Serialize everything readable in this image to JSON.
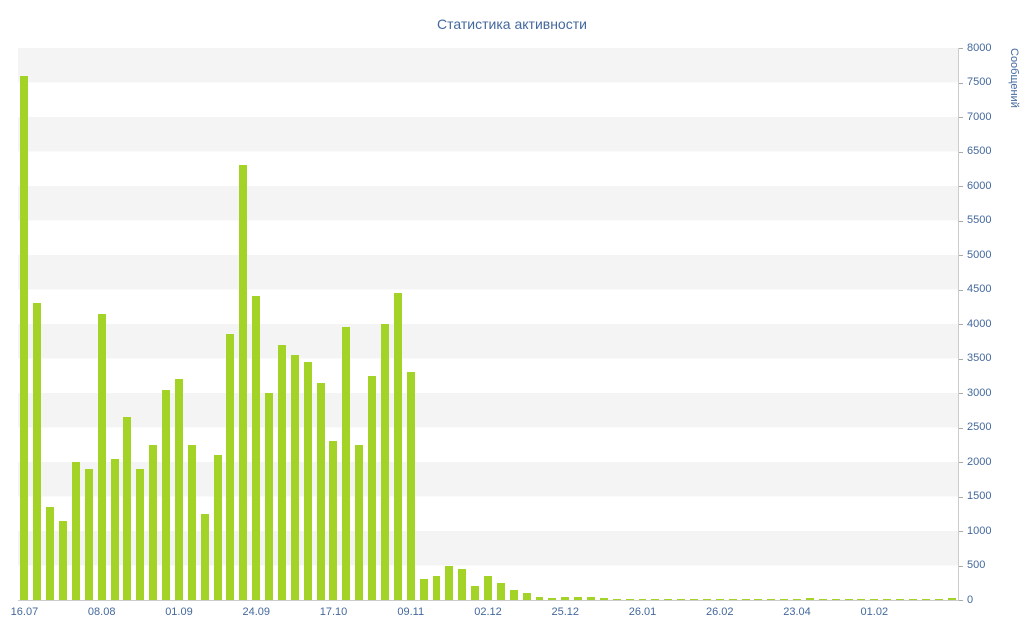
{
  "title": "Статистика активности",
  "colors": {
    "accent_text": "#44699d",
    "bar": "#a4d328",
    "stripe": "#f4f4f4",
    "axis": "#cccccc"
  },
  "chart_data": {
    "type": "bar",
    "title": "Статистика активности",
    "xlabel": "",
    "ylabel": "Сообщений",
    "ylim": [
      0,
      8000
    ],
    "ytick_step": 500,
    "grid": "striped-bands",
    "legend": "none",
    "y_axis_side": "right",
    "values": [
      7600,
      4300,
      1350,
      1150,
      2000,
      1900,
      4150,
      2050,
      2650,
      1900,
      2250,
      3050,
      3200,
      2250,
      1250,
      2100,
      3850,
      6300,
      4400,
      3000,
      3700,
      3550,
      3450,
      3150,
      2300,
      3950,
      2250,
      3250,
      4000,
      4450,
      3300,
      300,
      350,
      500,
      450,
      200,
      350,
      250,
      150,
      100,
      50,
      30,
      50,
      40,
      50,
      30,
      20,
      20,
      10,
      15,
      20,
      10,
      10,
      15,
      10,
      5,
      10,
      15,
      5,
      10,
      5,
      30,
      10,
      5,
      15,
      5,
      5,
      10,
      5,
      10,
      5,
      15,
      30
    ],
    "x_labels": [
      {
        "index": 0,
        "label": "16.07"
      },
      {
        "index": 6,
        "label": "08.08"
      },
      {
        "index": 12,
        "label": "01.09"
      },
      {
        "index": 18,
        "label": "24.09"
      },
      {
        "index": 24,
        "label": "17.10"
      },
      {
        "index": 30,
        "label": "09.11"
      },
      {
        "index": 36,
        "label": "02.12"
      },
      {
        "index": 42,
        "label": "25.12"
      },
      {
        "index": 48,
        "label": "26.01"
      },
      {
        "index": 54,
        "label": "26.02"
      },
      {
        "index": 60,
        "label": "23.04"
      },
      {
        "index": 66,
        "label": "01.02"
      }
    ]
  }
}
